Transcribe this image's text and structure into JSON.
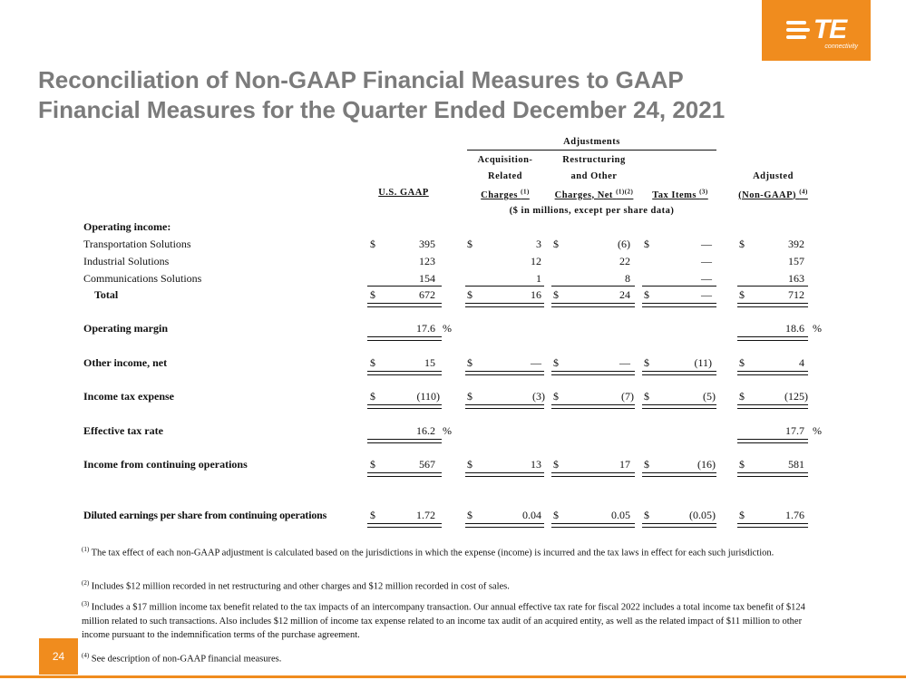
{
  "logo": {
    "text": "TE",
    "sub": "connectivity"
  },
  "title": {
    "line1": "Reconciliation of Non-GAAP Financial Measures to GAAP",
    "line2": "Financial Measures for the Quarter Ended December 24, 2021"
  },
  "table": {
    "adjustments_label": "Adjustments",
    "columns": {
      "gaap": "U.S. GAAP",
      "acq_1": "Acquisition-",
      "acq_2": "Related",
      "acq_3": "Charges",
      "acq_sup": "(1)",
      "restr_1": "Restructuring",
      "restr_2": "and Other",
      "restr_3": "Charges, Net",
      "restr_sup": "(1)(2)",
      "tax": "Tax Items",
      "tax_sup": "(3)",
      "adj_1": "Adjusted",
      "adj_2": "(Non-GAAP)",
      "adj_sup": "(4)"
    },
    "units_note": "($ in millions, except per share data)",
    "section_operating_income": "Operating income:",
    "rows": {
      "transportation": {
        "label": "Transportation Solutions",
        "gaap": "395",
        "acq": "3",
        "restr": "(6)",
        "tax": "—",
        "adj": "392"
      },
      "industrial": {
        "label": "Industrial Solutions",
        "gaap": "123",
        "acq": "12",
        "restr": "22",
        "tax": "—",
        "adj": "157"
      },
      "communications": {
        "label": "Communications Solutions",
        "gaap": "154",
        "acq": "1",
        "restr": "8",
        "tax": "—",
        "adj": "163"
      },
      "total": {
        "label": "Total",
        "gaap": "672",
        "acq": "16",
        "restr": "24",
        "tax": "—",
        "adj": "712"
      },
      "operating_margin": {
        "label": "Operating margin",
        "gaap": "17.6",
        "adj": "18.6"
      },
      "other_income": {
        "label": "Other income, net",
        "gaap": "15",
        "acq": "—",
        "restr": "—",
        "tax": "(11)",
        "adj": "4"
      },
      "income_tax": {
        "label": "Income tax expense",
        "gaap": "(110)",
        "acq": "(3)",
        "restr": "(7)",
        "tax": "(5)",
        "adj": "(125)"
      },
      "effective_tax_rate": {
        "label": "Effective tax rate",
        "gaap": "16.2",
        "adj": "17.7"
      },
      "income_cont_ops": {
        "label": "Income from continuing operations",
        "gaap": "567",
        "acq": "13",
        "restr": "17",
        "tax": "(16)",
        "adj": "581"
      },
      "diluted_eps": {
        "label": "Diluted earnings per share from continuing operations",
        "gaap": "1.72",
        "acq": "0.04",
        "restr": "0.05",
        "tax": "(0.05)",
        "adj": "1.76"
      }
    },
    "dollar": "$",
    "percent": "%"
  },
  "footnotes": {
    "f1_sup": "(1)",
    "f1": "The tax effect of each non-GAAP adjustment is calculated based on the jurisdictions in which the expense (income) is incurred and the tax laws in effect for each such jurisdiction.",
    "f2_sup": "(2)",
    "f2": "Includes $12 million recorded in net restructuring and other charges and $12 million recorded in cost of sales.",
    "f3_sup": "(3)",
    "f3": "Includes a $17 million income tax benefit related to the tax impacts of an intercompany transaction. Our annual effective tax rate for fiscal 2022 includes a total income tax benefit of $124 million related to such transactions. Also includes $12 million of income tax expense related to an income tax audit of an acquired entity, as well as the related impact of $11 million to other income pursuant to the indemnification terms of the purchase agreement.",
    "f4_sup": "(4)",
    "f4": "See description of non-GAAP financial measures."
  },
  "page_number": "24",
  "colors": {
    "accent": "#f08c1e",
    "title": "#7b7b7b"
  }
}
